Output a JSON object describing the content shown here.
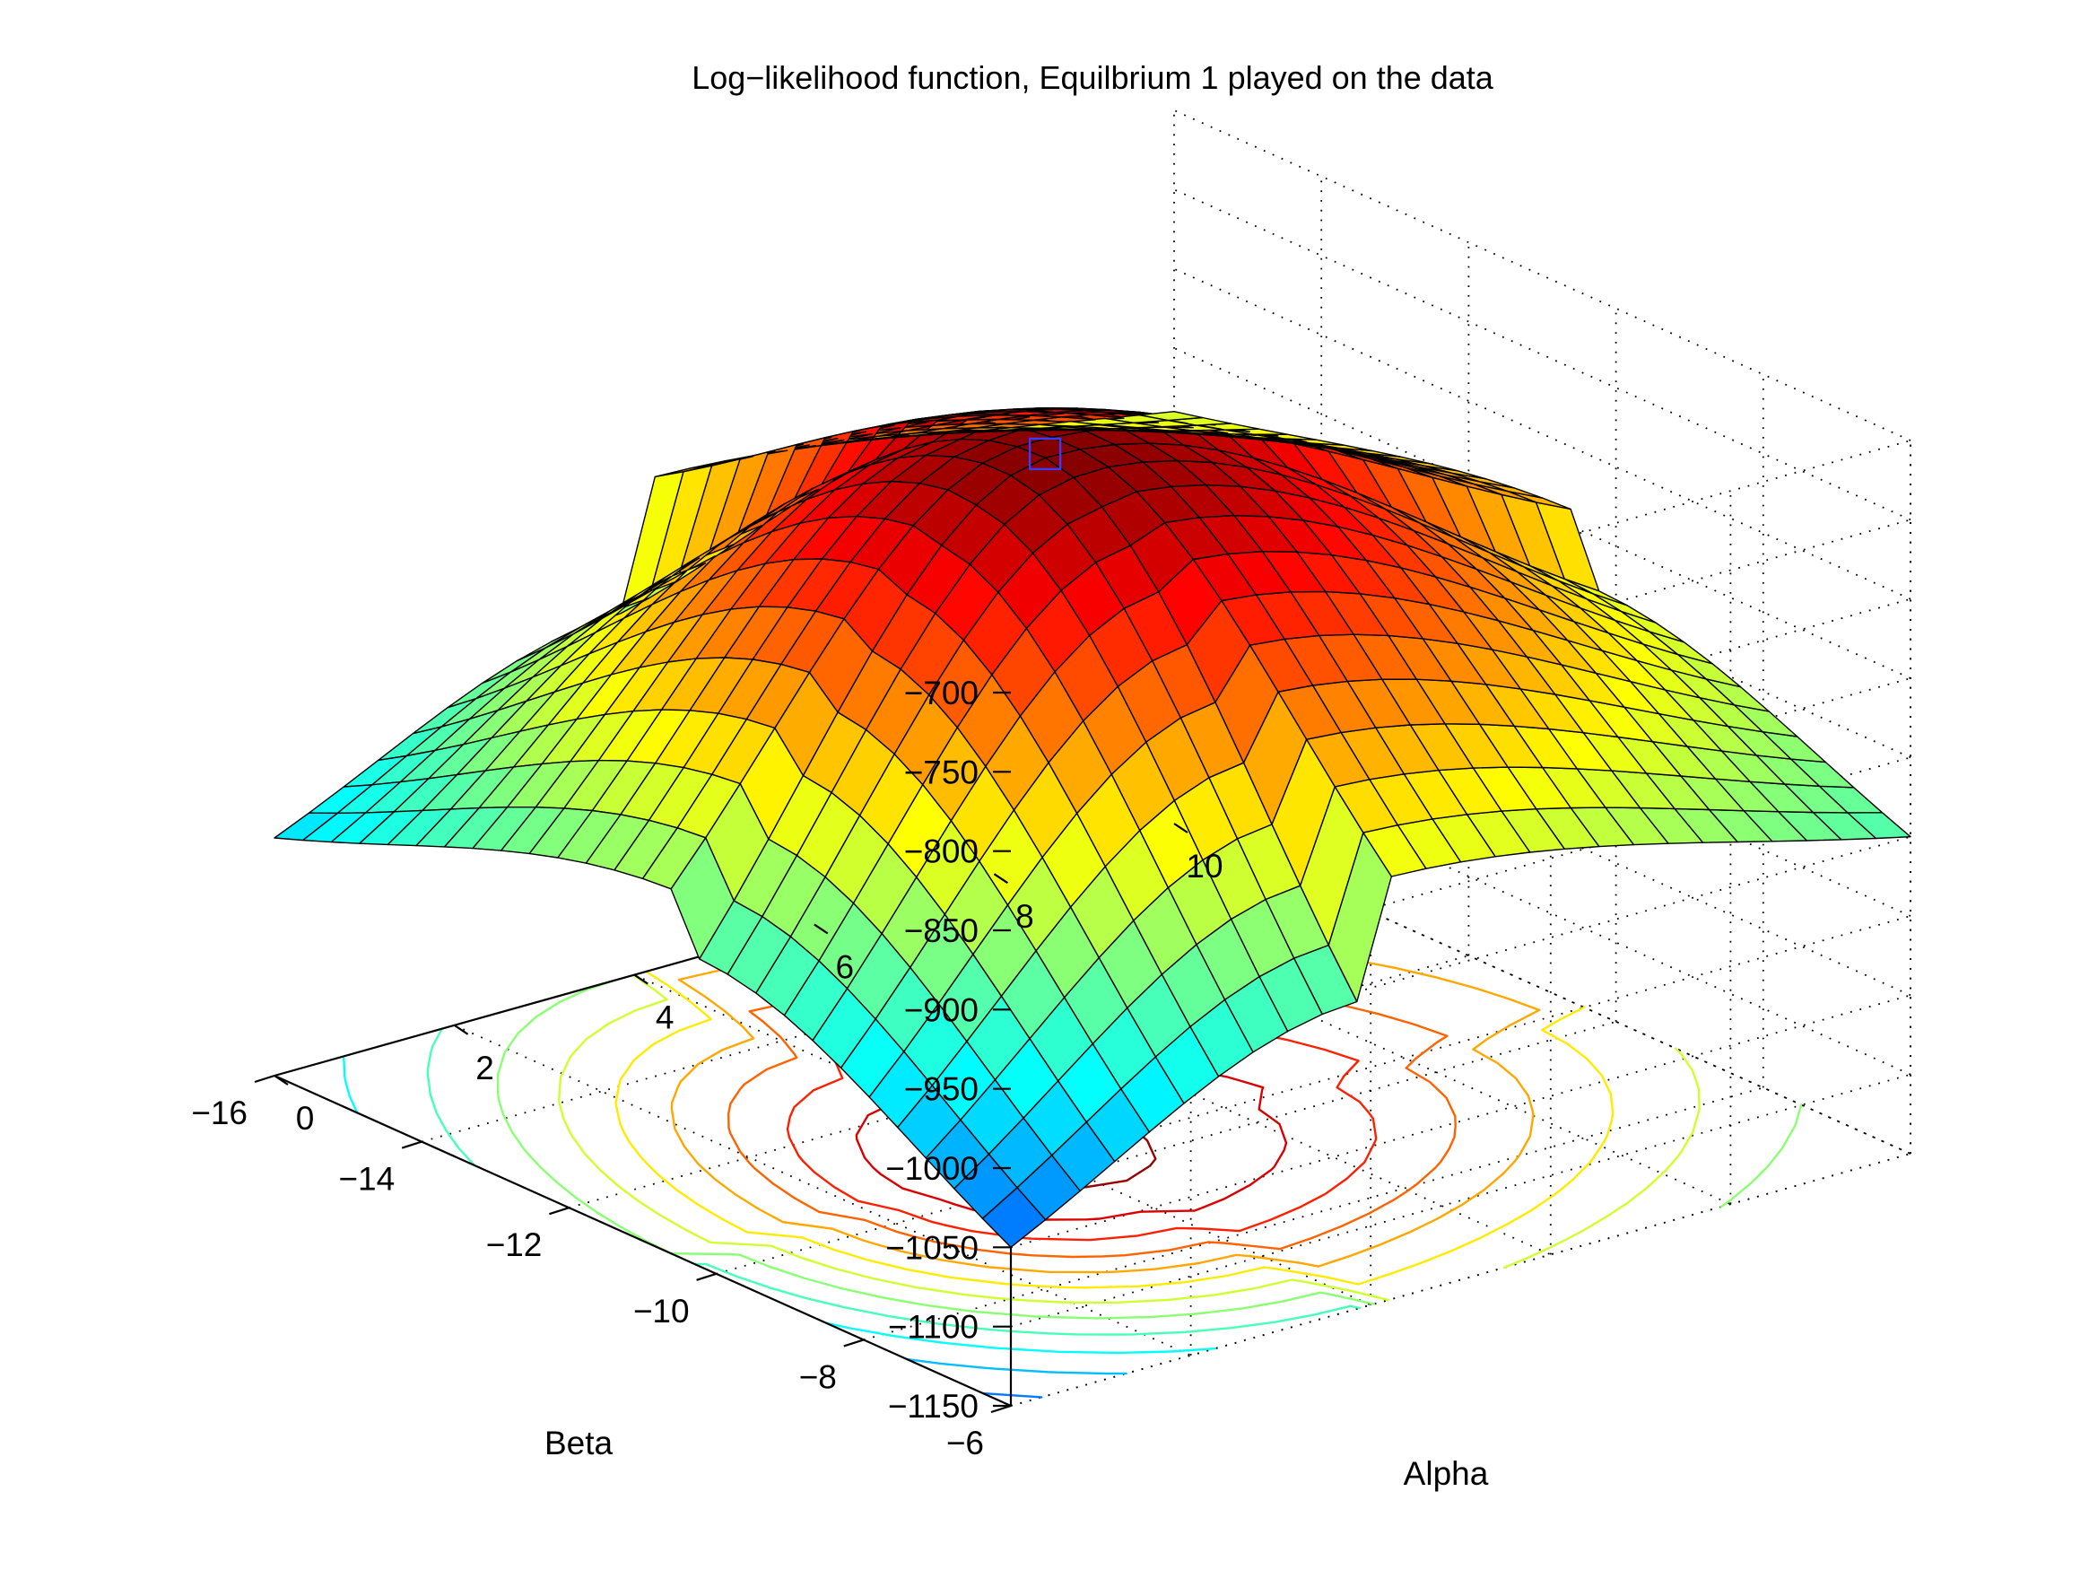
{
  "chart_data": {
    "type": "surface",
    "title": "Log−likelihood function, Equilbrium 1 played on the data",
    "xlabel": "Alpha",
    "ylabel": "Beta",
    "zlabel": "",
    "xlim": [
      0,
      10
    ],
    "ylim": [
      -16,
      -6
    ],
    "zlim": [
      -1150,
      -700
    ],
    "x_ticks": [
      "0",
      "2",
      "4",
      "6",
      "8",
      "10"
    ],
    "y_ticks": [
      "−6",
      "−8",
      "−10",
      "−12",
      "−14",
      "−16"
    ],
    "z_ticks": [
      "−700",
      "−750",
      "−800",
      "−850",
      "−900",
      "−950",
      "−1000",
      "−1050",
      "−1100",
      "−1150"
    ],
    "grid": true,
    "colormap": "jet",
    "surface_model": {
      "description": "approximate log-likelihood surface",
      "peak": {
        "alpha": 3.9,
        "beta": -10.3,
        "loglik": -701
      },
      "corner_values": [
        {
          "alpha": 0,
          "beta": -6,
          "loglik": -1050
        },
        {
          "alpha": 0,
          "beta": -16,
          "loglik": -1000
        },
        {
          "alpha": 10,
          "beta": -6,
          "loglik": -950
        },
        {
          "alpha": 10,
          "beta": -16,
          "loglik": -890
        }
      ]
    },
    "grid_resolution": 26,
    "contour_levels": [
      -1040,
      -1010,
      -980,
      -950,
      -920,
      -890,
      -860,
      -830,
      -800,
      -770,
      -740,
      -710
    ],
    "marker": {
      "alpha": 3.9,
      "beta": -10.3,
      "loglik": -701,
      "shape": "square",
      "color": "#3b3bff"
    }
  },
  "colors": {
    "background": "#ffffff",
    "axis": "#000000",
    "marker": "#3b3bff"
  }
}
